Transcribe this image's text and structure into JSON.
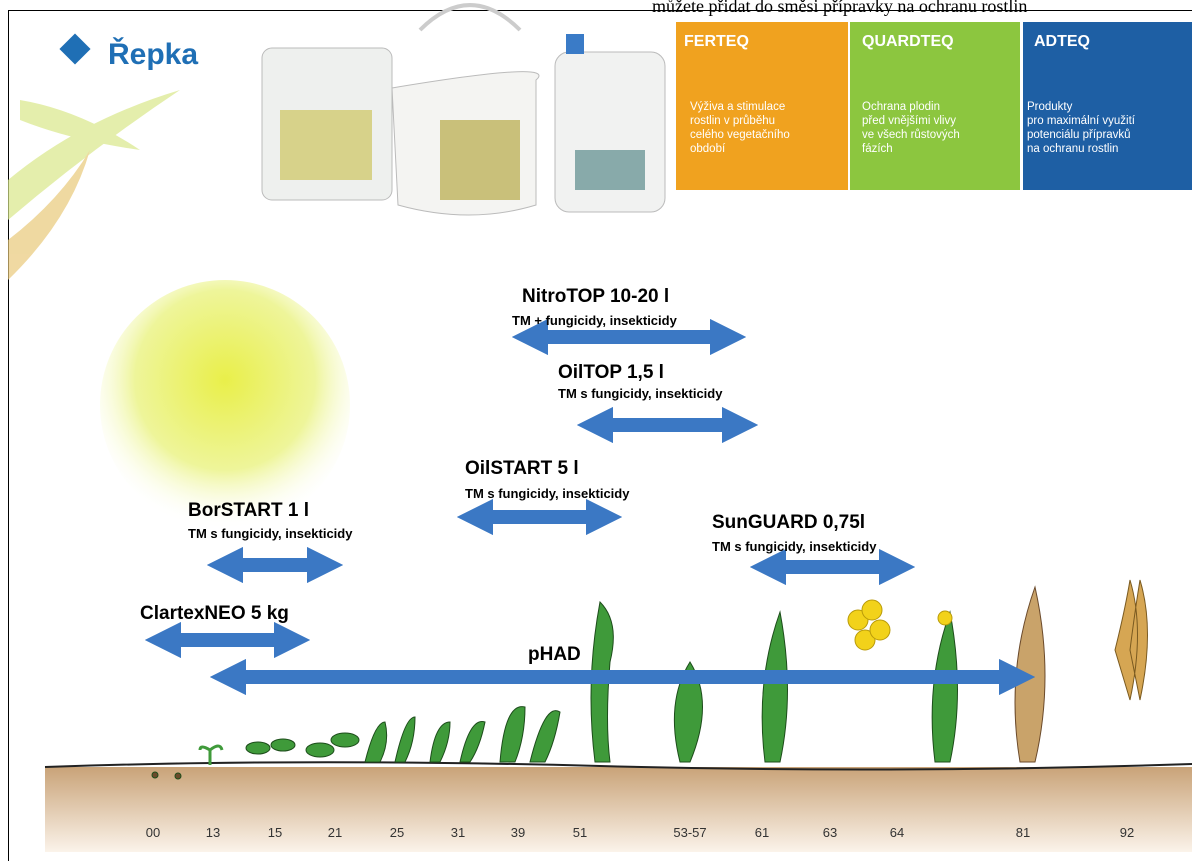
{
  "top_note": "můžete přidat do směsi přípravky na ochranu rostlin",
  "title": "Řepka",
  "panels": [
    {
      "title": "FERTEQ",
      "lines": [
        "Výživa a stimulace",
        "rostlin v průběhu",
        "celého vegetačního",
        "období"
      ]
    },
    {
      "title": "QUARDTEQ",
      "lines": [
        "Ochrana plodin",
        "před vnějšími vlivy",
        "ve všech růstových",
        "fázích"
      ]
    },
    {
      "title": "ADTEQ",
      "lines": [
        "Produkty",
        "pro maximální využití",
        "potenciálu přípravků",
        "na ochranu rostlin"
      ]
    }
  ],
  "products": [
    {
      "label": "NitroTOP 10-20 l",
      "note": "TM + fungicidy, insekticidy"
    },
    {
      "label": "OilTOP 1,5 l",
      "note": "TM  s fungicidy, insekticidy"
    },
    {
      "label": "OilSTART 5 l",
      "note": "TM  s fungicidy, insekticidy"
    },
    {
      "label": "BorSTART 1 l",
      "note": "TM  s fungicidy, insekticidy"
    },
    {
      "label": "SunGUARD 0,75l",
      "note": "TM  s fungicidy, insekticidy"
    },
    {
      "label": "ClartexNEO 5 kg"
    },
    {
      "label": "pHAD"
    }
  ],
  "stages": [
    "00",
    "13",
    "15",
    "21",
    "25",
    "31",
    "39",
    "51",
    "53-57",
    "61",
    "63",
    "64",
    "81",
    "92"
  ]
}
